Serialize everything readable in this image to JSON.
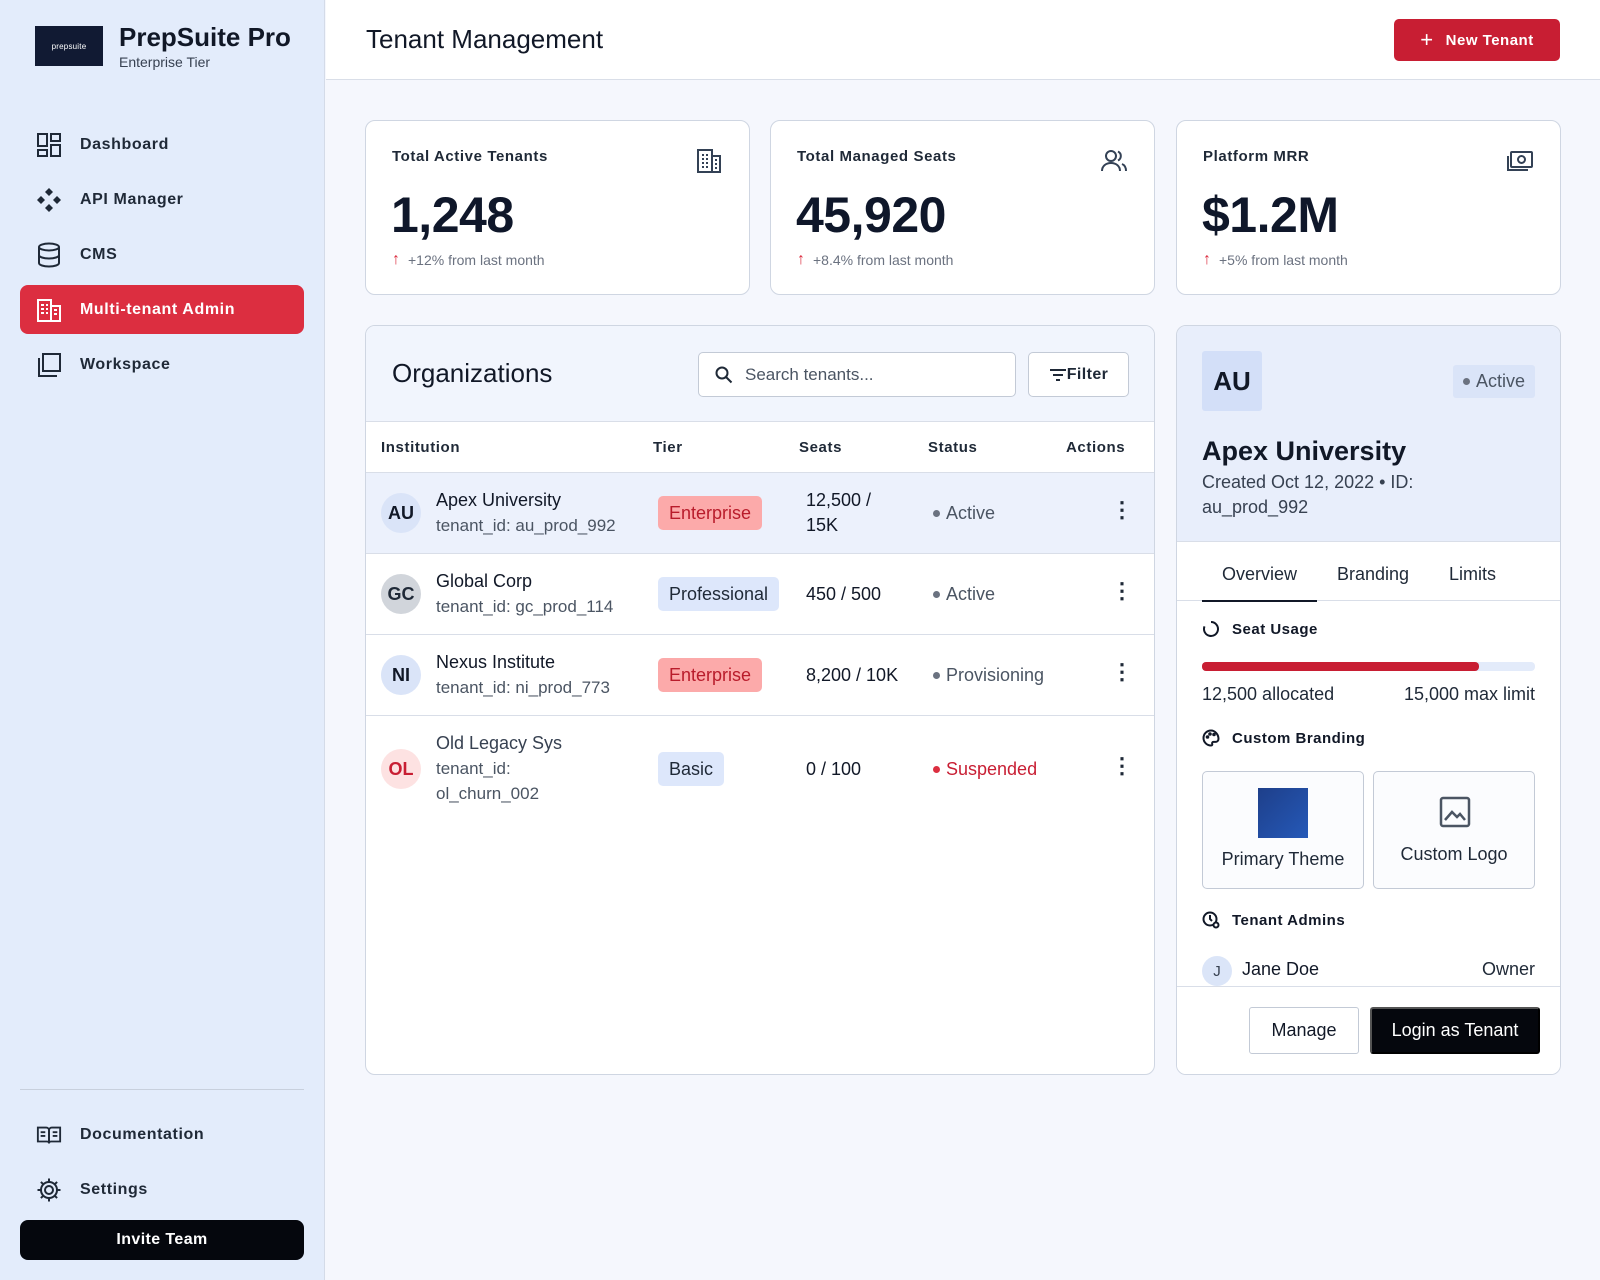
{
  "brand": {
    "logo_text": "prepsuite",
    "name": "PrepSuite Pro",
    "tier": "Enterprise Tier"
  },
  "nav": {
    "items": [
      {
        "label": "Dashboard",
        "icon": "dashboard-icon"
      },
      {
        "label": "API Manager",
        "icon": "api-icon"
      },
      {
        "label": "CMS",
        "icon": "database-icon"
      },
      {
        "label": "Multi-tenant Admin",
        "icon": "building-icon",
        "active": true
      },
      {
        "label": "Workspace",
        "icon": "workspace-icon"
      }
    ],
    "bottom": [
      {
        "label": "Documentation",
        "icon": "book-icon"
      },
      {
        "label": "Settings",
        "icon": "gear-icon"
      }
    ],
    "invite_label": "Invite Team"
  },
  "header": {
    "title": "Tenant Management",
    "new_button": "New Tenant",
    "new_button_icon": "+"
  },
  "stats": [
    {
      "label": "Total Active Tenants",
      "value": "1,248",
      "change": "+12% from last month",
      "icon": "building-icon"
    },
    {
      "label": "Total Managed Seats",
      "value": "45,920",
      "change": "+8.4% from last month",
      "icon": "users-icon"
    },
    {
      "label": "Platform MRR",
      "value": "$1.2M",
      "change": "+5% from last month",
      "icon": "money-icon"
    }
  ],
  "change_arrow": "↑",
  "orgs": {
    "title": "Organizations",
    "search_placeholder": "Search tenants...",
    "filter_label": "Filter",
    "columns": [
      "Institution",
      "Tier",
      "Seats",
      "Status",
      "Actions"
    ],
    "rows": [
      {
        "initials": "AU",
        "name": "Apex University",
        "tenant_id": "tenant_id: au_prod_992",
        "tier": "Enterprise",
        "seats": "12,500 / 15K",
        "status": "Active"
      },
      {
        "initials": "GC",
        "name": "Global Corp",
        "tenant_id": "tenant_id: gc_prod_114",
        "tier": "Professional",
        "seats": "450 / 500",
        "status": "Active"
      },
      {
        "initials": "NI",
        "name": "Nexus Institute",
        "tenant_id": "tenant_id: ni_prod_773",
        "tier": "Enterprise",
        "seats": "8,200 / 10K",
        "status": "Provisioning"
      },
      {
        "initials": "OL",
        "name": "Old Legacy Sys",
        "tenant_id": "tenant_id: ol_churn_002",
        "tier": "Basic",
        "seats": "0 / 100",
        "status": "Suspended"
      }
    ],
    "kebab": "⋮"
  },
  "detail": {
    "initials": "AU",
    "status": "Active",
    "name": "Apex University",
    "meta": "Created Oct 12, 2022 • ID: au_prod_992",
    "tabs": [
      "Overview",
      "Branding",
      "Limits"
    ],
    "seat_usage": {
      "title": "Seat Usage",
      "allocated": "12,500 allocated",
      "limit": "15,000 max limit",
      "fraction": 0.833
    },
    "branding": {
      "title": "Custom Branding",
      "primary_theme": "Primary Theme",
      "custom_logo": "Custom Logo",
      "theme_color": "#1e3f8a"
    },
    "admins": {
      "title": "Tenant Admins",
      "list": [
        {
          "initial": "J",
          "name": "Jane Doe",
          "role": "Owner"
        }
      ]
    },
    "manage_label": "Manage",
    "login_label": "Login as Tenant"
  },
  "colors": {
    "accent": "#dc2e40",
    "sidebar_bg": "#e3ecfb",
    "dark": "#05070d"
  }
}
